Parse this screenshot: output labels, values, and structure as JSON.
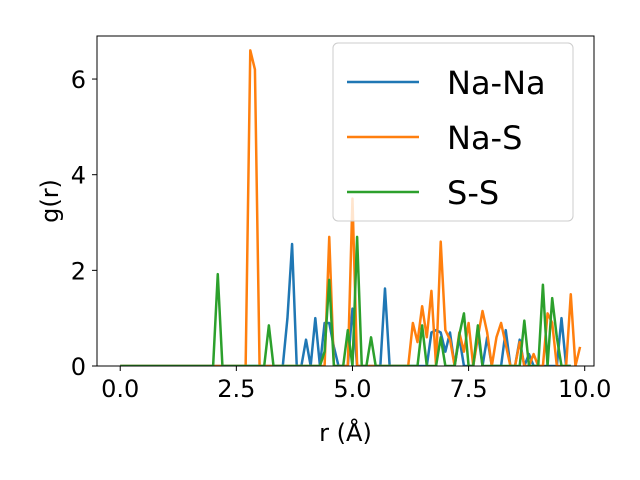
{
  "chart_data": {
    "type": "line",
    "xlabel": "r (Å)",
    "ylabel": "g(r)",
    "xlim": [
      -0.5,
      10.2
    ],
    "ylim": [
      0,
      6.9
    ],
    "xticks": [
      0.0,
      2.5,
      5.0,
      7.5,
      10.0
    ],
    "xtick_labels": [
      "0.0",
      "2.5",
      "5.0",
      "7.5",
      "10.0"
    ],
    "yticks": [
      0,
      2,
      4,
      6
    ],
    "ytick_labels": [
      "0",
      "2",
      "4",
      "6"
    ],
    "grid": false,
    "legend_position": "top-right",
    "series": [
      {
        "name": "Na-Na",
        "color": "#1f77b4",
        "x": [
          0.0,
          3.5,
          3.6,
          3.7,
          3.8,
          3.9,
          4.0,
          4.1,
          4.2,
          4.3,
          4.4,
          4.5,
          4.6,
          4.7,
          4.8,
          4.9,
          5.0,
          5.1,
          5.2,
          5.3,
          5.4,
          5.5,
          5.6,
          5.7,
          5.8,
          5.9,
          6.0,
          6.1,
          6.2,
          6.3,
          6.4,
          6.5,
          6.6,
          6.7,
          6.8,
          6.9,
          7.0,
          7.1,
          7.2,
          7.3,
          7.4,
          7.5,
          7.6,
          7.7,
          7.8,
          7.9,
          8.0,
          8.1,
          8.2,
          8.3,
          8.4,
          8.5,
          8.6,
          8.7,
          8.8,
          8.9,
          9.0,
          9.1,
          9.2,
          9.3,
          9.4,
          9.5,
          9.6,
          9.7
        ],
        "y": [
          0.0,
          0.0,
          1.0,
          2.55,
          0.0,
          0.0,
          0.55,
          0.0,
          1.0,
          0.0,
          0.9,
          0.9,
          0.4,
          0.0,
          0.0,
          0.0,
          1.2,
          0.0,
          0.0,
          0.0,
          0.0,
          0.0,
          0.0,
          1.62,
          0.0,
          0.0,
          0.0,
          0.0,
          0.0,
          0.0,
          0.0,
          0.0,
          0.0,
          0.7,
          0.75,
          0.7,
          0.3,
          0.7,
          0.0,
          0.6,
          0.0,
          0.0,
          0.0,
          0.7,
          0.0,
          0.6,
          0.0,
          0.0,
          0.0,
          0.75,
          0.0,
          0.0,
          0.55,
          0.0,
          0.25,
          0.0,
          0.0,
          0.0,
          0.0,
          0.0,
          0.0,
          1.0,
          0.0,
          0.0
        ]
      },
      {
        "name": "Na-S",
        "color": "#ff7f0e",
        "x": [
          0.0,
          2.7,
          2.8,
          2.9,
          3.0,
          3.1,
          3.2,
          3.3,
          3.4,
          3.5,
          3.6,
          3.7,
          3.8,
          3.9,
          4.0,
          4.1,
          4.2,
          4.3,
          4.4,
          4.5,
          4.6,
          4.7,
          4.8,
          4.9,
          5.0,
          5.1,
          5.2,
          5.3,
          5.4,
          5.5,
          5.6,
          5.7,
          5.8,
          5.9,
          6.0,
          6.1,
          6.2,
          6.3,
          6.4,
          6.5,
          6.6,
          6.7,
          6.8,
          6.9,
          7.0,
          7.1,
          7.2,
          7.3,
          7.4,
          7.5,
          7.6,
          7.7,
          7.8,
          7.9,
          8.0,
          8.1,
          8.2,
          8.3,
          8.4,
          8.5,
          8.6,
          8.7,
          8.8,
          8.9,
          9.0,
          9.1,
          9.2,
          9.3,
          9.4,
          9.5,
          9.6,
          9.7,
          9.8,
          9.9
        ],
        "y": [
          0.0,
          0.0,
          6.6,
          6.2,
          0.0,
          0.0,
          0.0,
          0.0,
          0.0,
          0.0,
          0.0,
          0.0,
          0.0,
          0.0,
          0.0,
          0.0,
          0.0,
          0.0,
          0.0,
          2.7,
          0.0,
          0.0,
          0.0,
          0.0,
          3.5,
          0.0,
          0.0,
          0.0,
          0.0,
          0.0,
          0.0,
          0.0,
          0.0,
          0.0,
          0.0,
          0.0,
          0.0,
          0.9,
          0.5,
          1.25,
          0.6,
          1.57,
          0.0,
          2.6,
          0.75,
          0.55,
          0.0,
          0.7,
          0.3,
          0.9,
          0.0,
          0.6,
          1.15,
          0.7,
          0.0,
          0.6,
          0.9,
          0.45,
          0.0,
          0.0,
          0.5,
          0.0,
          0.0,
          0.25,
          0.0,
          0.0,
          1.1,
          0.9,
          0.0,
          0.0,
          0.0,
          1.5,
          0.0,
          0.4
        ]
      },
      {
        "name": "S-S",
        "color": "#2ca02c",
        "x": [
          0.0,
          2.0,
          2.1,
          2.2,
          2.3,
          3.1,
          3.2,
          3.3,
          3.4,
          3.5,
          3.6,
          3.7,
          3.8,
          3.9,
          4.0,
          4.1,
          4.2,
          4.3,
          4.4,
          4.5,
          4.6,
          4.7,
          4.8,
          4.9,
          5.0,
          5.1,
          5.2,
          5.3,
          5.4,
          5.5,
          5.6,
          5.7,
          5.8,
          5.9,
          6.0,
          6.1,
          6.2,
          6.3,
          6.4,
          6.5,
          6.6,
          6.7,
          6.8,
          6.9,
          7.0,
          7.1,
          7.2,
          7.3,
          7.4,
          7.5,
          7.6,
          7.7,
          7.8,
          7.9,
          8.0,
          8.1,
          8.2,
          8.3,
          8.4,
          8.5,
          8.6,
          8.7,
          8.8,
          8.9,
          9.0,
          9.1,
          9.2,
          9.3,
          9.4,
          9.5,
          9.6,
          9.7
        ],
        "y": [
          0.0,
          0.0,
          1.92,
          0.0,
          0.0,
          0.0,
          0.85,
          0.0,
          0.0,
          0.0,
          0.0,
          0.0,
          0.0,
          0.0,
          0.0,
          0.0,
          0.0,
          0.0,
          0.3,
          1.8,
          0.0,
          0.0,
          0.0,
          0.75,
          0.0,
          2.7,
          0.0,
          0.0,
          0.6,
          0.0,
          0.0,
          0.0,
          0.0,
          0.0,
          0.0,
          0.0,
          0.0,
          0.0,
          0.0,
          0.85,
          0.0,
          0.0,
          0.0,
          0.6,
          0.0,
          0.0,
          0.0,
          0.65,
          1.1,
          0.0,
          0.0,
          0.85,
          0.0,
          0.0,
          0.0,
          0.0,
          0.0,
          0.0,
          0.0,
          0.0,
          0.0,
          0.95,
          0.0,
          0.0,
          0.0,
          1.7,
          0.0,
          1.42,
          0.6,
          0.0,
          0.0,
          0.0
        ]
      }
    ]
  }
}
